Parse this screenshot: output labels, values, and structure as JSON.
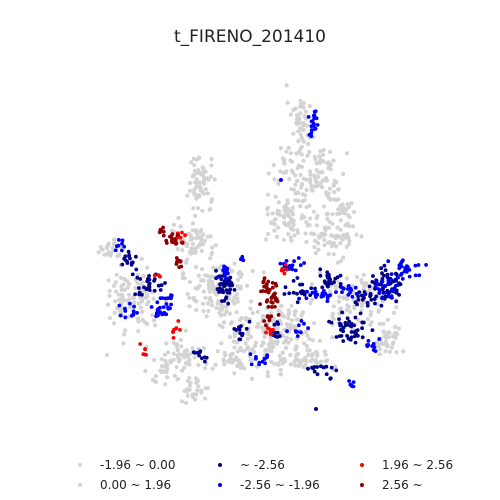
{
  "title": "t_FIRENO_201410",
  "colors": {
    "grey": "#d3d3d3",
    "navy": "#00008b",
    "blue": "#0000ff",
    "red": "#ff0000",
    "darkred": "#8b0000"
  },
  "legend": [
    {
      "label": "-1.96 ~ 0.00",
      "color": "#d3d3d3"
    },
    {
      "label": "0.00 ~ 1.96",
      "color": "#d3d3d3"
    },
    {
      "label": "~ -2.56",
      "color": "#00008b"
    },
    {
      "label": "-2.56 ~ -1.96",
      "color": "#0000ff"
    },
    {
      "label": "1.96 ~ 2.56",
      "color": "#ff0000"
    },
    {
      "label": "2.56 ~",
      "color": "#8b0000"
    }
  ]
}
